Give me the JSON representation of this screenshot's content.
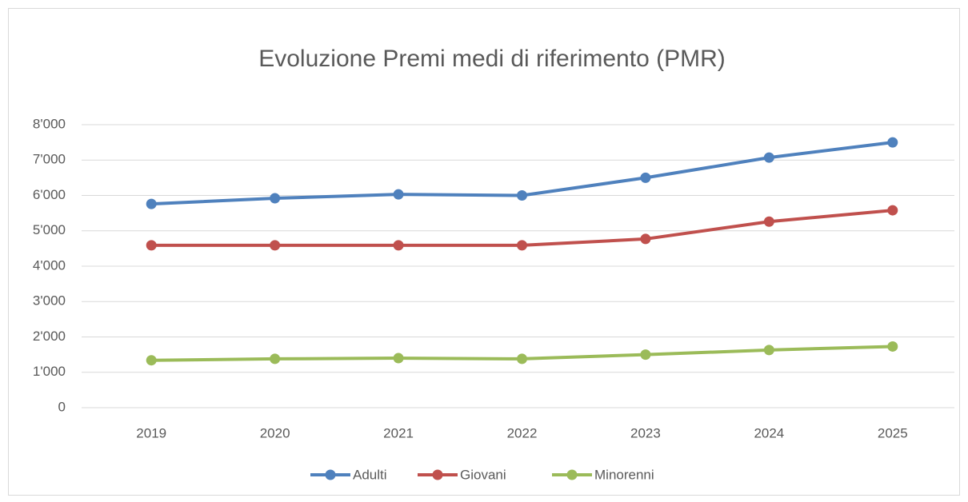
{
  "chart_data": {
    "type": "line",
    "title": "Evoluzione Premi medi di riferimento (PMR)",
    "categories": [
      "2019",
      "2020",
      "2021",
      "2022",
      "2023",
      "2024",
      "2025"
    ],
    "series": [
      {
        "name": "Adulti",
        "color": "#4f81bd",
        "values": [
          5760,
          5920,
          6030,
          6000,
          6500,
          7070,
          7500
        ]
      },
      {
        "name": "Giovani",
        "color": "#c0504d",
        "values": [
          4590,
          4590,
          4590,
          4590,
          4770,
          5260,
          5580
        ]
      },
      {
        "name": "Minorenni",
        "color": "#9bbb59",
        "values": [
          1340,
          1380,
          1400,
          1380,
          1500,
          1630,
          1730
        ]
      }
    ],
    "ylim": [
      0,
      8000
    ],
    "yticks": [
      0,
      {
        "value": 1000,
        "label": "1'000"
      },
      {
        "value": 2000,
        "label": "2'000"
      },
      {
        "value": 3000,
        "label": "3'000"
      },
      {
        "value": 4000,
        "label": "4'000"
      },
      {
        "value": 5000,
        "label": "5'000"
      },
      {
        "value": 6000,
        "label": "6'000"
      },
      {
        "value": 7000,
        "label": "7'000"
      },
      {
        "value": 8000,
        "label": "8'000"
      }
    ],
    "grid": true,
    "legend": "bottom"
  }
}
